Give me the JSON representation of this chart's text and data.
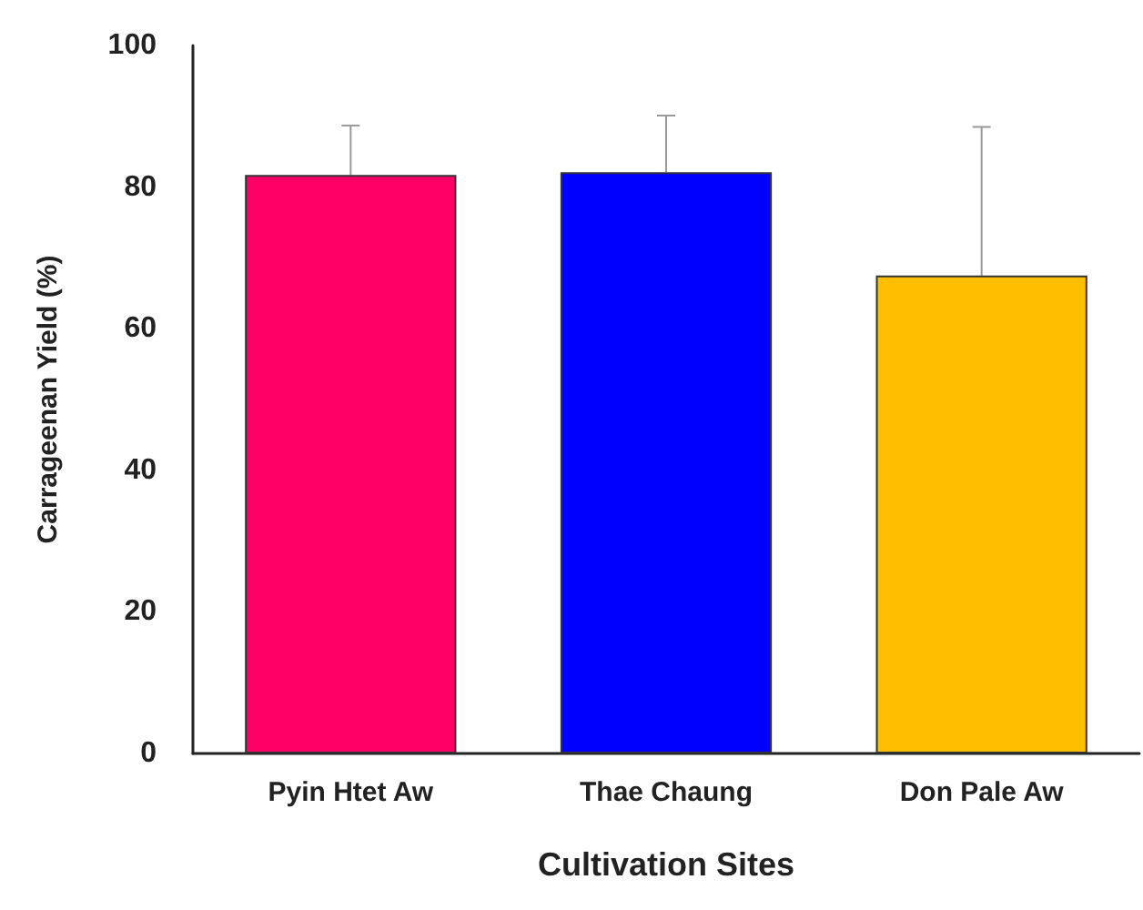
{
  "chart_data": {
    "type": "bar",
    "xlabel": "Cultivation Sites",
    "ylabel": "Carrageenan Yield (%)",
    "categories": [
      "Pyin Htet Aw",
      "Thae Chaung",
      "Don Pale Aw"
    ],
    "values": [
      81.7,
      82.1,
      67.5
    ],
    "colors": [
      "#ff0066",
      "#0000ff",
      "#ffbf00"
    ],
    "errors": [
      7,
      8,
      21
    ],
    "ylim": [
      0,
      100
    ],
    "yticks": [
      0,
      20,
      40,
      60,
      80,
      100
    ],
    "grid": false
  }
}
